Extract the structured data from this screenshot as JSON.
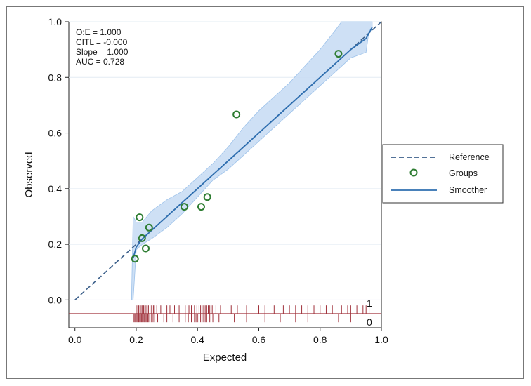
{
  "chart_data": {
    "type": "scatter",
    "title": "",
    "xlabel": "Expected",
    "ylabel": "Observed",
    "xlim": [
      -0.02,
      1.0
    ],
    "ylim": [
      -0.1,
      1.0
    ],
    "xticks": [
      "0.0",
      "0.2",
      "0.4",
      "0.6",
      "0.8",
      "1.0"
    ],
    "xtick_values": [
      0.0,
      0.2,
      0.4,
      0.6,
      0.8,
      1.0
    ],
    "yticks": [
      "0.0",
      "0.2",
      "0.4",
      "0.6",
      "0.8",
      "1.0"
    ],
    "ytick_values": [
      0.0,
      0.2,
      0.4,
      0.6,
      0.8,
      1.0
    ],
    "grid": true,
    "legend_position": "right",
    "legend": [
      {
        "name": "Reference",
        "style": "dashed-line",
        "color": "#3b5f8a"
      },
      {
        "name": "Groups",
        "style": "hollow-circle",
        "color": "#2e7d32"
      },
      {
        "name": "Smoother",
        "style": "solid-line",
        "color": "#2f6fb0"
      }
    ],
    "stats": [
      "O:E = 1.000",
      "CITL = -0.000",
      "Slope = 1.000",
      "AUC = 0.728"
    ],
    "rug_labels": [
      "1",
      "0"
    ],
    "series": [
      {
        "name": "Reference",
        "type": "line",
        "x": [
          0.0,
          1.0
        ],
        "y": [
          0.0,
          1.0
        ]
      },
      {
        "name": "Groups",
        "type": "scatter",
        "x": [
          0.196,
          0.211,
          0.219,
          0.231,
          0.242,
          0.357,
          0.412,
          0.432,
          0.527,
          0.86
        ],
        "y": [
          0.148,
          0.297,
          0.222,
          0.185,
          0.26,
          0.335,
          0.335,
          0.37,
          0.667,
          0.885
        ]
      },
      {
        "name": "Smoother",
        "type": "line",
        "x": [
          0.19,
          0.2,
          0.22,
          0.25,
          0.3,
          0.35,
          0.4,
          0.45,
          0.5,
          0.55,
          0.6,
          0.65,
          0.7,
          0.75,
          0.8,
          0.85,
          0.9,
          0.95,
          0.97
        ],
        "y": [
          0.15,
          0.19,
          0.22,
          0.25,
          0.3,
          0.35,
          0.4,
          0.45,
          0.5,
          0.55,
          0.6,
          0.65,
          0.7,
          0.75,
          0.8,
          0.85,
          0.9,
          0.94,
          0.98
        ]
      },
      {
        "name": "Confidence band",
        "type": "area",
        "x": [
          0.185,
          0.19,
          0.2,
          0.22,
          0.25,
          0.3,
          0.35,
          0.4,
          0.45,
          0.5,
          0.55,
          0.6,
          0.65,
          0.7,
          0.75,
          0.8,
          0.85,
          0.87,
          0.9,
          0.95,
          0.96,
          0.97
        ],
        "upper": [
          0.02,
          0.3,
          0.28,
          0.28,
          0.32,
          0.36,
          0.39,
          0.44,
          0.49,
          0.55,
          0.62,
          0.68,
          0.73,
          0.78,
          0.84,
          0.9,
          0.97,
          1.0,
          1.0,
          1.0,
          1.0,
          1.0
        ],
        "lower": [
          -0.0,
          0.0,
          0.18,
          0.2,
          0.22,
          0.26,
          0.31,
          0.37,
          0.43,
          0.47,
          0.52,
          0.57,
          0.62,
          0.67,
          0.72,
          0.77,
          0.82,
          0.84,
          0.87,
          0.89,
          0.97,
          0.98
        ]
      }
    ],
    "rug_events": [
      0.2,
      0.205,
      0.208,
      0.212,
      0.216,
      0.22,
      0.224,
      0.228,
      0.232,
      0.236,
      0.24,
      0.245,
      0.25,
      0.256,
      0.26,
      0.267,
      0.28,
      0.3,
      0.31,
      0.325,
      0.34,
      0.36,
      0.372,
      0.38,
      0.39,
      0.398,
      0.405,
      0.41,
      0.415,
      0.42,
      0.425,
      0.43,
      0.435,
      0.44,
      0.448,
      0.46,
      0.475,
      0.49,
      0.51,
      0.53,
      0.56,
      0.6,
      0.62,
      0.65,
      0.68,
      0.7,
      0.72,
      0.74,
      0.76,
      0.78,
      0.8,
      0.82,
      0.84,
      0.87,
      0.89,
      0.9,
      0.92,
      0.94,
      0.95,
      0.96
    ],
    "rug_nonevents": [
      0.19,
      0.193,
      0.196,
      0.199,
      0.202,
      0.205,
      0.208,
      0.211,
      0.214,
      0.217,
      0.22,
      0.223,
      0.226,
      0.229,
      0.232,
      0.235,
      0.238,
      0.241,
      0.245,
      0.25,
      0.255,
      0.26,
      0.27,
      0.29,
      0.3,
      0.32,
      0.34,
      0.36,
      0.37,
      0.38,
      0.39,
      0.395,
      0.4,
      0.405,
      0.41,
      0.415,
      0.42,
      0.425,
      0.43,
      0.44,
      0.45,
      0.47,
      0.49,
      0.52,
      0.56,
      0.62,
      0.67,
      0.72,
      0.76,
      0.86,
      0.9
    ]
  }
}
